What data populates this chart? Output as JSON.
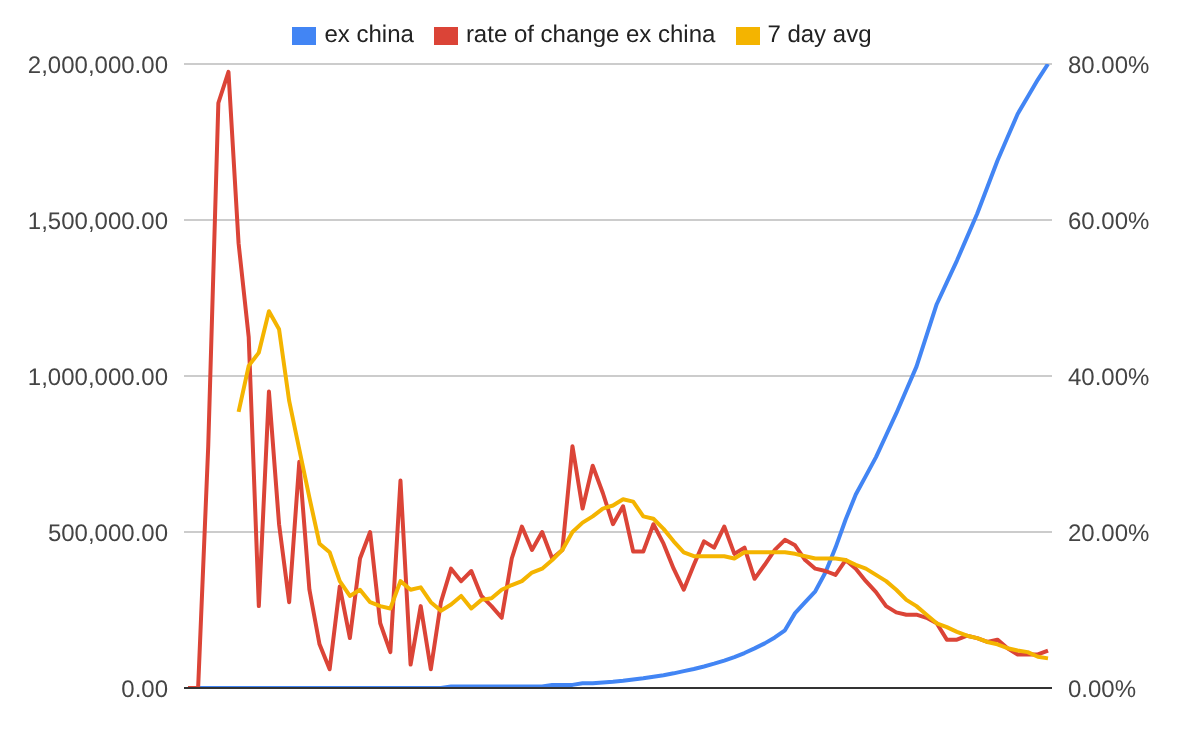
{
  "chart_data": {
    "type": "line",
    "categories": [
      null,
      null,
      null,
      null,
      null,
      null,
      null,
      null,
      null,
      null,
      null,
      null,
      null,
      null,
      null,
      null,
      null,
      null,
      null,
      null,
      null,
      null,
      null,
      null,
      null,
      null,
      null,
      null,
      null,
      null,
      null,
      null,
      null,
      null,
      null,
      null,
      null,
      null,
      null,
      null,
      null,
      null,
      null,
      null,
      null,
      null,
      null,
      null,
      null,
      null,
      null,
      null,
      null,
      null,
      null,
      null,
      null,
      null,
      null,
      null,
      null,
      null,
      null,
      null,
      null,
      null,
      null,
      null,
      null,
      null,
      null,
      null,
      null,
      null,
      null,
      null,
      null,
      null,
      null,
      null,
      null,
      null,
      null,
      null,
      null,
      null
    ],
    "series": [
      {
        "name": "ex china",
        "color": "#4285f4",
        "values": [
          0,
          0,
          0,
          0,
          0,
          0,
          0,
          0,
          0,
          0,
          0,
          0,
          0,
          0,
          0,
          0,
          0,
          0,
          0,
          0,
          0,
          0,
          0,
          0,
          0,
          0,
          5000,
          5000,
          5000,
          5000,
          5000,
          5000,
          5000,
          5000,
          5000,
          5000,
          10000,
          10000,
          10000,
          15000,
          15000,
          18000,
          20000,
          23000,
          27000,
          31000,
          36000,
          41000,
          47000,
          54000,
          61000,
          69000,
          78000,
          88000,
          99000,
          112000,
          127000,
          143000,
          162000,
          185000,
          240000,
          275000,
          310000,
          370000,
          450000,
          540000,
          620000,
          680000,
          740000,
          810000,
          880000,
          955000,
          1030000,
          1130000,
          1230000,
          1300000,
          1370000,
          1445000,
          1520000,
          1605000,
          1690000,
          1765000,
          1840000,
          1895000,
          1950000,
          2000000
        ]
      },
      {
        "name": "rate of change ex china",
        "color": "#db4437",
        "axis": "y2",
        "values": [
          0,
          0,
          31,
          75,
          79,
          57,
          45,
          10.5,
          38,
          21,
          11,
          29,
          12.6,
          5.6,
          2.4,
          13,
          6.4,
          16.6,
          20,
          8.3,
          4.6,
          26.6,
          3,
          10.5,
          2.4,
          11,
          15.3,
          13.7,
          15,
          11.8,
          10.5,
          9,
          16.6,
          20.7,
          17.7,
          20,
          16.6,
          17.7,
          31,
          23,
          28.5,
          25,
          21,
          23.3,
          17.5,
          17.5,
          21,
          18.5,
          15.3,
          12.6,
          15.8,
          18.8,
          18,
          20.7,
          17.2,
          18,
          14,
          15.8,
          17.7,
          19,
          18.3,
          16.4,
          15.3,
          15,
          14.5,
          16.4,
          15.3,
          13.7,
          12.3,
          10.5,
          9.7,
          9.4,
          9.4,
          9,
          8.3,
          6.2,
          6.2,
          6.7,
          6.4,
          5.9,
          6.2,
          5.1,
          4.3,
          4.3,
          4.3,
          4.8
        ]
      },
      {
        "name": "7 day avg",
        "color": "#f4b400",
        "axis": "y2",
        "values": [
          null,
          null,
          null,
          null,
          null,
          35.4,
          41.3,
          43,
          48.3,
          46,
          36.8,
          30.6,
          24.4,
          18.5,
          17.4,
          13.7,
          11.8,
          12.6,
          11,
          10.5,
          10.2,
          13.7,
          12.6,
          12.9,
          11,
          9.9,
          10.7,
          11.8,
          10.2,
          11.3,
          11.5,
          12.6,
          13.2,
          13.7,
          14.8,
          15.3,
          16.4,
          17.7,
          20,
          21.2,
          22,
          23,
          23.4,
          24.2,
          23.9,
          22,
          21.7,
          20.4,
          18.8,
          17.4,
          16.9,
          16.9,
          16.9,
          16.9,
          16.6,
          17.4,
          17.4,
          17.4,
          17.4,
          17.4,
          17.2,
          16.9,
          16.6,
          16.6,
          16.6,
          16.4,
          15.8,
          15.3,
          14.5,
          13.7,
          12.6,
          11.3,
          10.5,
          9.4,
          8.3,
          7.8,
          7.2,
          6.7,
          6.4,
          5.9,
          5.6,
          5.1,
          4.8,
          4.6,
          4,
          3.8
        ]
      }
    ],
    "ylim": [
      0,
      2000000
    ],
    "yticks": [
      {
        "value": 0,
        "label": "0.00"
      },
      {
        "value": 500000,
        "label": "500,000.00"
      },
      {
        "value": 1000000,
        "label": "1,000,000.00"
      },
      {
        "value": 1500000,
        "label": "1,500,000.00"
      },
      {
        "value": 2000000,
        "label": "2,000,000.00"
      }
    ],
    "y2lim": [
      0,
      80
    ],
    "y2ticks": [
      {
        "value": 0,
        "label": "0.00%"
      },
      {
        "value": 20,
        "label": "20.00%"
      },
      {
        "value": 40,
        "label": "40.00%"
      },
      {
        "value": 60,
        "label": "60.00%"
      },
      {
        "value": 80,
        "label": "80.00%"
      }
    ],
    "grid": "y",
    "legend": "top",
    "marker": "none"
  }
}
